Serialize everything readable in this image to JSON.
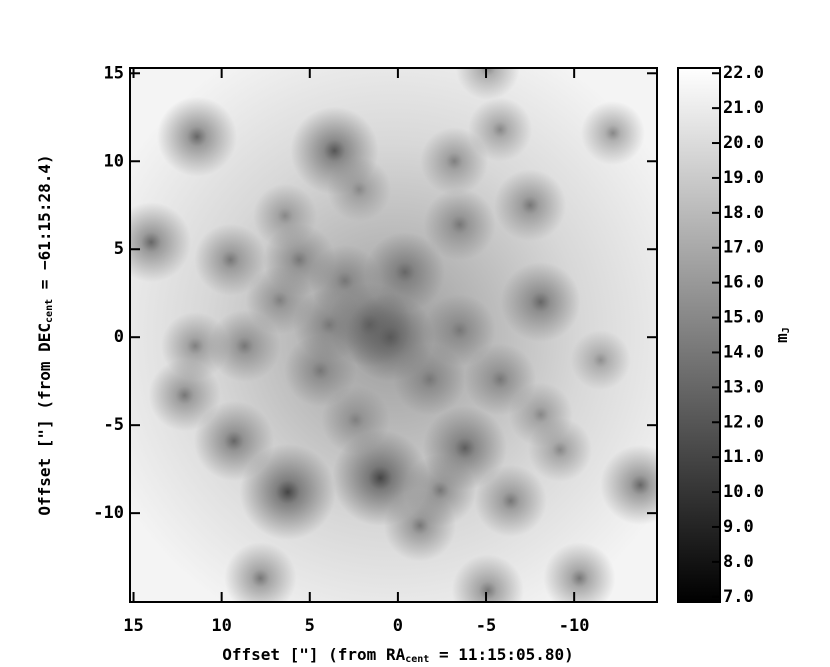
{
  "chart_data": {
    "type": "starfield",
    "x_label": {
      "pre": "Offset [\"] (from RA",
      "sub": "cent",
      "post": " = 11:15:05.80)"
    },
    "y_label": {
      "pre": "Offset [\"] (from DEC",
      "sub": "cent",
      "post": " = −61:15:28.4)"
    },
    "colorbar_label": {
      "pre": "m",
      "sub": "J"
    },
    "xlim": [
      15.2,
      -14.7
    ],
    "ylim": [
      -15.05,
      15.3
    ],
    "xticks": [
      15,
      10,
      5,
      0,
      -5,
      -10
    ],
    "yticks": [
      15,
      10,
      5,
      0,
      -5,
      -10
    ],
    "clim": [
      6.85,
      22.15
    ],
    "cticks": [
      {
        "value": 22,
        "label": "22.0"
      },
      {
        "value": 21,
        "label": "21.0"
      },
      {
        "value": 20,
        "label": "20.0"
      },
      {
        "value": 19,
        "label": "19.0"
      },
      {
        "value": 18,
        "label": "18.0"
      },
      {
        "value": 17,
        "label": "17.0"
      },
      {
        "value": 16,
        "label": "16.0"
      },
      {
        "value": 15,
        "label": "15.0"
      },
      {
        "value": 14,
        "label": "14.0"
      },
      {
        "value": 13,
        "label": "13.0"
      },
      {
        "value": 12,
        "label": "12.0"
      },
      {
        "value": 11,
        "label": "11.0"
      },
      {
        "value": 10,
        "label": "10.0"
      },
      {
        "value": 9,
        "label": "9.0"
      },
      {
        "value": 8,
        "label": "8.0"
      },
      {
        "value": 7,
        "label": "7.0"
      }
    ],
    "stars": {
      "x": [
        6.25,
        1.0,
        3.6,
        11.4,
        14.0,
        -13.75,
        9.3,
        12.1,
        0.45,
        1.6,
        -0.4,
        -3.8,
        -8.1,
        7.8,
        -10.3,
        -12.2,
        -7.5,
        -3.5,
        5.6,
        9.5,
        3.0,
        8.7,
        11.5,
        4.4,
        -1.8,
        -5.8,
        -6.4,
        -1.25,
        -2.4,
        -5.8,
        -3.2,
        2.2,
        6.4,
        -8.1,
        -9.2,
        -5.1,
        -5.1,
        2.4,
        -3.5,
        3.9,
        6.7,
        -11.5
      ],
      "y": [
        -8.8,
        -8.0,
        10.6,
        11.4,
        5.4,
        -8.4,
        -5.9,
        -3.3,
        0.0,
        0.7,
        3.7,
        -6.3,
        2.0,
        -13.7,
        -13.7,
        11.6,
        7.5,
        6.4,
        4.4,
        4.4,
        3.2,
        -0.5,
        -0.5,
        -1.9,
        -2.4,
        -2.4,
        -9.3,
        -10.7,
        -8.7,
        11.8,
        10.0,
        8.4,
        6.9,
        -4.4,
        -6.4,
        -14.4,
        15.3,
        -4.7,
        0.4,
        0.7,
        2.1,
        -1.3
      ],
      "mag": [
        11,
        11,
        12,
        13,
        13,
        13,
        13,
        14,
        12,
        12.5,
        13,
        12.5,
        13,
        14,
        14,
        15,
        14,
        14,
        14,
        14,
        14,
        14,
        14.5,
        14,
        14,
        14,
        14,
        14,
        14,
        15,
        14.5,
        15,
        15,
        15,
        15,
        14,
        15,
        14.5,
        14,
        14,
        14.5,
        15.5
      ]
    }
  }
}
